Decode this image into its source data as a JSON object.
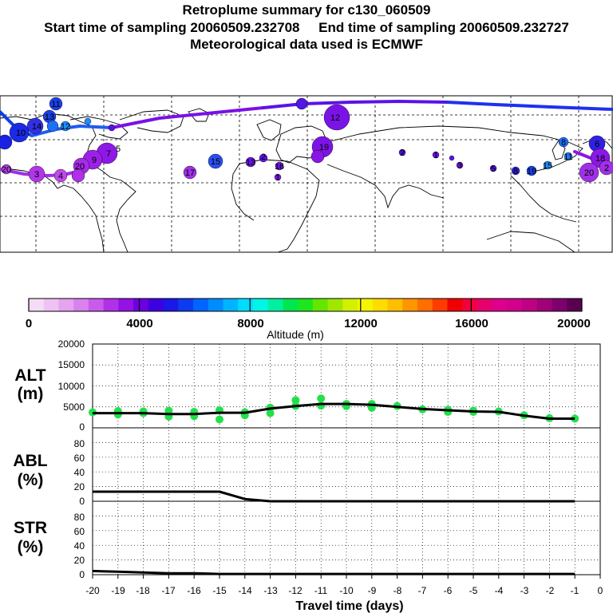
{
  "title": "Retroplume summary for c130_060509",
  "subtitle": "Start time of sampling 20060509.232708     End time of sampling 20060509.232727",
  "met_line": "Meteorological data used is ECMWF",
  "colorbar": {
    "label": "Altitude (m)",
    "tick_labels": [
      "0",
      "4000",
      "8000",
      "12000",
      "16000",
      "20000"
    ],
    "ticks": [
      0,
      4000,
      8000,
      12000,
      16000,
      20000
    ],
    "range": [
      0,
      20000
    ],
    "colors": [
      "#f4dcf4",
      "#eec2f2",
      "#e5a3f0",
      "#d982ee",
      "#c95bea",
      "#b230e8",
      "#9412e4",
      "#6e00e0",
      "#3e00e0",
      "#1a18e6",
      "#0b3cf0",
      "#0064ff",
      "#008cff",
      "#00b4ff",
      "#00dcff",
      "#00f5e6",
      "#00f0a0",
      "#00e650",
      "#1ee61e",
      "#64e600",
      "#a0e600",
      "#d2f000",
      "#f5f500",
      "#ffdc00",
      "#ffbe00",
      "#ff9600",
      "#ff6e00",
      "#ff3c00",
      "#f00000",
      "#f0003c",
      "#e6006e",
      "#dc008c",
      "#d2008c",
      "#be0082",
      "#a00078",
      "#7d006e",
      "#5a0050"
    ]
  },
  "chart_data": [
    {
      "type": "line",
      "name": "ALT",
      "ylabel_lines": [
        "ALT",
        "(m)"
      ],
      "ylim": [
        0,
        20000
      ],
      "y_tick_labels": [
        "0",
        "5000",
        "10000",
        "15000",
        "20000"
      ],
      "x": [
        -20,
        -19,
        -18,
        -17,
        -16,
        -15,
        -14,
        -13,
        -12,
        -11,
        -10,
        -9,
        -8,
        -7,
        -6,
        -5,
        -4,
        -3,
        -2,
        -1
      ],
      "values": [
        3500,
        3500,
        3500,
        3300,
        3300,
        3600,
        3600,
        4600,
        5200,
        5700,
        5700,
        5500,
        5000,
        4500,
        4200,
        3900,
        3800,
        2900,
        2200,
        2200
      ],
      "spread_points": [
        [
          -20,
          3700
        ],
        [
          -19,
          4000
        ],
        [
          -19,
          3200
        ],
        [
          -18,
          3900
        ],
        [
          -18,
          3500
        ],
        [
          -17,
          4100
        ],
        [
          -17,
          2700
        ],
        [
          -16,
          3800
        ],
        [
          -16,
          2800
        ],
        [
          -15,
          4200
        ],
        [
          -15,
          2000
        ],
        [
          -14,
          3700
        ],
        [
          -14,
          3000
        ],
        [
          -13,
          4800
        ],
        [
          -13,
          3500
        ],
        [
          -12,
          6600
        ],
        [
          -12,
          5200
        ],
        [
          -11,
          7000
        ],
        [
          -11,
          5300
        ],
        [
          -10,
          5700
        ],
        [
          -10,
          5200
        ],
        [
          -9,
          5700
        ],
        [
          -9,
          4800
        ],
        [
          -8,
          5200
        ],
        [
          -7,
          4400
        ],
        [
          -6,
          4300
        ],
        [
          -6,
          3800
        ],
        [
          -5,
          3800
        ],
        [
          -5,
          4100
        ],
        [
          -4,
          3900
        ],
        [
          -3,
          3000
        ],
        [
          -2,
          2300
        ],
        [
          -1,
          2200
        ]
      ]
    },
    {
      "type": "line",
      "name": "ABL",
      "ylabel_lines": [
        "ABL",
        "(%)"
      ],
      "ylim": [
        0,
        100
      ],
      "y_tick_labels": [
        "0",
        "20",
        "40",
        "60",
        "80"
      ],
      "x": [
        -20,
        -19,
        -18,
        -17,
        -16,
        -15,
        -14,
        -13,
        -12,
        -11,
        -10,
        -9,
        -8,
        -7,
        -6,
        -5,
        -4,
        -3,
        -2,
        -1
      ],
      "values": [
        13,
        13,
        13,
        13,
        13,
        13,
        3,
        0,
        0,
        0,
        0,
        0,
        0,
        0,
        0,
        0,
        0,
        0,
        0,
        0
      ]
    },
    {
      "type": "line",
      "name": "STR",
      "ylabel_lines": [
        "STR",
        "(%)"
      ],
      "ylim": [
        0,
        100
      ],
      "y_tick_labels": [
        "0",
        "20",
        "40",
        "60",
        "80"
      ],
      "x": [
        -20,
        -19,
        -18,
        -17,
        -16,
        -15,
        -14,
        -13,
        -12,
        -11,
        -10,
        -9,
        -8,
        -7,
        -6,
        -5,
        -4,
        -3,
        -2,
        -1
      ],
      "values": [
        5,
        4,
        3,
        2,
        2,
        1,
        1,
        1,
        1,
        1,
        1,
        1,
        1,
        1,
        1,
        1,
        1,
        1,
        1,
        1
      ]
    }
  ],
  "x_axis": {
    "label": "Travel time (days)",
    "xlim": [
      -20,
      0
    ],
    "ticks": [
      -20,
      -19,
      -18,
      -17,
      -16,
      -15,
      -14,
      -13,
      -12,
      -11,
      -10,
      -9,
      -8,
      -7,
      -6,
      -5,
      -4,
      -3,
      -2,
      -1,
      0
    ],
    "tick_labels": [
      "-20",
      "-19",
      "-18",
      "-17",
      "-16",
      "-15",
      "-14",
      "-13",
      "-12",
      "-11",
      "-10",
      "-9",
      "-8",
      "-7",
      "-6",
      "-5",
      "-4",
      "-3",
      "-2",
      "-1",
      "0"
    ]
  },
  "map": {
    "plume_track": {
      "point_labels": [
        "11",
        "13",
        "14",
        "12",
        "10",
        "12",
        "19",
        "9",
        "7",
        "5",
        "3",
        "4",
        "20",
        "17",
        "15",
        "13",
        "2",
        "16",
        "1",
        "19",
        "11",
        "20",
        "2",
        "18",
        "15",
        "8",
        "5",
        "3",
        "1",
        "2",
        "6",
        "8",
        "20"
      ]
    }
  }
}
